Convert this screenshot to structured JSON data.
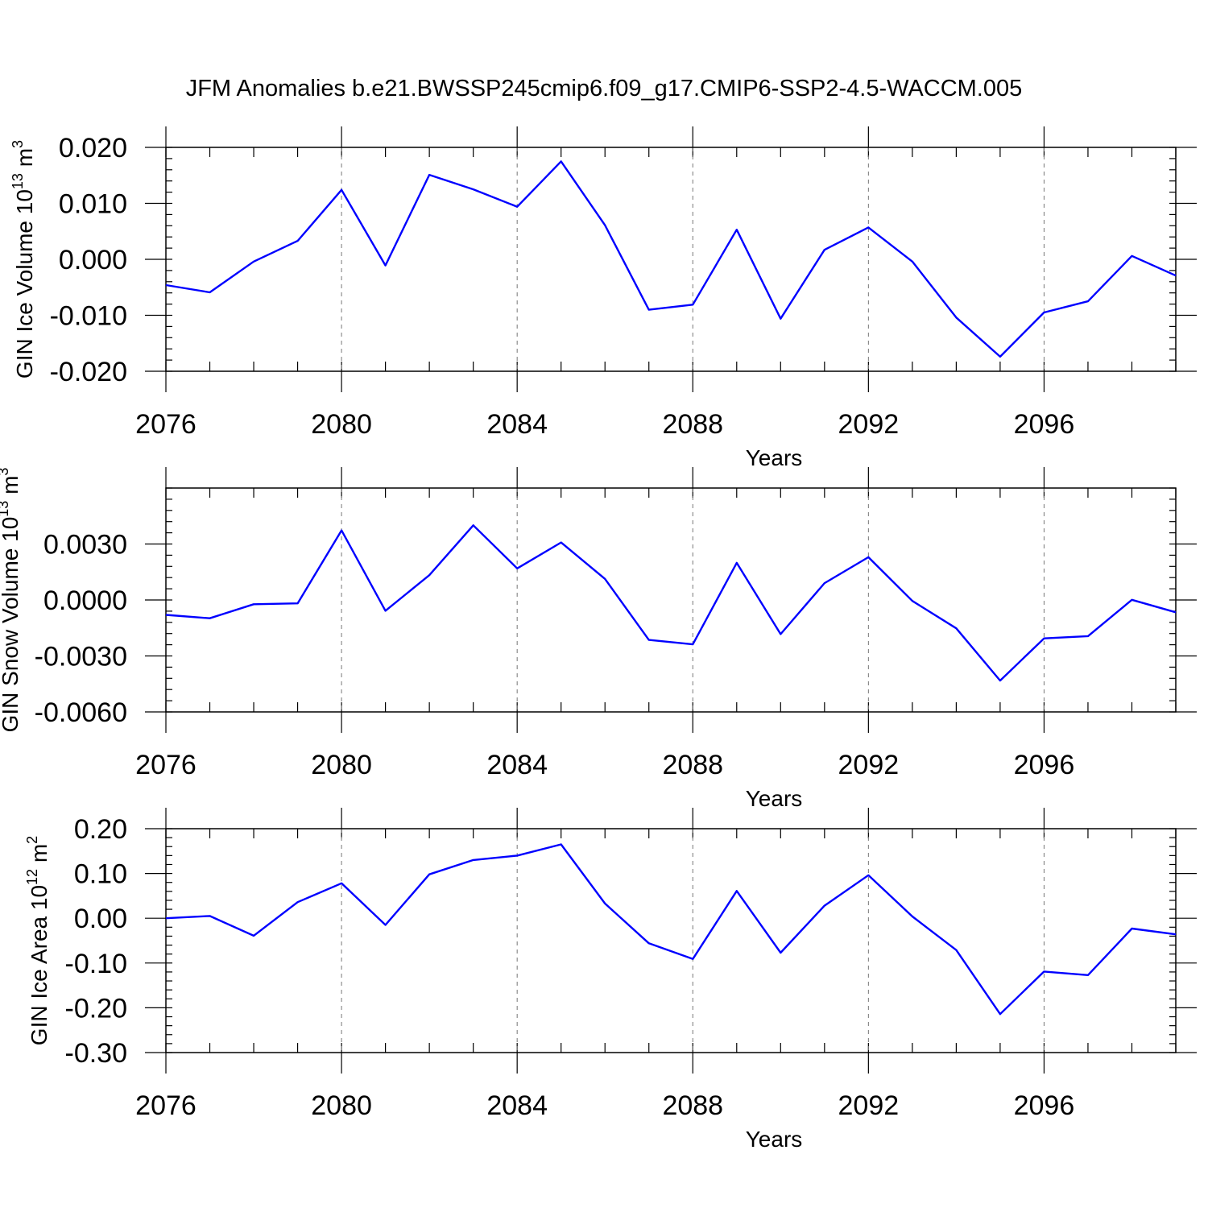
{
  "title": "JFM Anomalies b.e21.BWSSP245cmip6.f09_g17.CMIP6-SSP2-4.5-WACCM.005",
  "chart_data": [
    {
      "type": "line",
      "ylabel": "GIN Ice Volume 10",
      "ylabel_exp": "13",
      "ylabel_unit": " m",
      "ylabel_unit_exp": "3",
      "xlabel": "Years",
      "xlim": [
        2076,
        2099
      ],
      "ylim": [
        -0.02,
        0.02
      ],
      "y_ticks": [
        -0.02,
        -0.01,
        0.0,
        0.01,
        0.02
      ],
      "y_tick_labels": [
        "-0.020",
        "-0.010",
        "0.000",
        "0.010",
        "0.020"
      ],
      "x_ticks": [
        2076,
        2080,
        2084,
        2088,
        2092,
        2096
      ],
      "x_tick_labels": [
        "2076",
        "2080",
        "2084",
        "2088",
        "2092",
        "2096"
      ],
      "x": [
        2076,
        2077,
        2078,
        2079,
        2080,
        2081,
        2082,
        2083,
        2084,
        2085,
        2086,
        2087,
        2088,
        2089,
        2090,
        2091,
        2092,
        2093,
        2094,
        2095,
        2096,
        2097,
        2098,
        2099
      ],
      "values": [
        -0.0046,
        -0.0059,
        -0.0004,
        0.0033,
        0.0124,
        -0.0011,
        0.0151,
        0.0125,
        0.0094,
        0.0175,
        0.0061,
        -0.009,
        -0.0081,
        0.0053,
        -0.0106,
        0.0017,
        0.0057,
        -0.0004,
        -0.0104,
        -0.0174,
        -0.0095,
        -0.0075,
        0.0006,
        -0.0029
      ],
      "color": "#0000ff"
    },
    {
      "type": "line",
      "ylabel": "GIN Snow Volume 10",
      "ylabel_exp": "13",
      "ylabel_unit": " m",
      "ylabel_unit_exp": "3",
      "xlabel": "Years",
      "xlim": [
        2076,
        2099
      ],
      "ylim": [
        -0.006,
        0.006
      ],
      "y_ticks": [
        -0.006,
        -0.003,
        0.0,
        0.003
      ],
      "y_tick_labels": [
        "-0.0060",
        "-0.0030",
        "0.0000",
        "0.0030"
      ],
      "x_ticks": [
        2076,
        2080,
        2084,
        2088,
        2092,
        2096
      ],
      "x_tick_labels": [
        "2076",
        "2080",
        "2084",
        "2088",
        "2092",
        "2096"
      ],
      "x": [
        2076,
        2077,
        2078,
        2079,
        2080,
        2081,
        2082,
        2083,
        2084,
        2085,
        2086,
        2087,
        2088,
        2089,
        2090,
        2091,
        2092,
        2093,
        2094,
        2095,
        2096,
        2097,
        2098,
        2099
      ],
      "values": [
        -0.0008,
        -0.00098,
        -0.00023,
        -0.00018,
        0.00373,
        -0.00058,
        0.00133,
        0.004,
        0.00169,
        0.00308,
        0.00113,
        -0.00214,
        -0.00238,
        0.00199,
        -0.00183,
        0.0009,
        0.00229,
        -5e-05,
        -0.00152,
        -0.00432,
        -0.00206,
        -0.00194,
        1e-05,
        -0.00066
      ],
      "color": "#0000ff"
    },
    {
      "type": "line",
      "ylabel": "GIN Ice Area 10",
      "ylabel_exp": "12",
      "ylabel_unit": " m",
      "ylabel_unit_exp": "2",
      "xlabel": "Years",
      "xlim": [
        2076,
        2099
      ],
      "ylim": [
        -0.3,
        0.2
      ],
      "y_ticks": [
        -0.3,
        -0.2,
        -0.1,
        0.0,
        0.1,
        0.2
      ],
      "y_tick_labels": [
        "-0.30",
        "-0.20",
        "-0.10",
        "0.00",
        "0.10",
        "0.20"
      ],
      "x_ticks": [
        2076,
        2080,
        2084,
        2088,
        2092,
        2096
      ],
      "x_tick_labels": [
        "2076",
        "2080",
        "2084",
        "2088",
        "2092",
        "2096"
      ],
      "x": [
        2076,
        2077,
        2078,
        2079,
        2080,
        2081,
        2082,
        2083,
        2084,
        2085,
        2086,
        2087,
        2088,
        2089,
        2090,
        2091,
        2092,
        2093,
        2094,
        2095,
        2096,
        2097,
        2098,
        2099
      ],
      "values": [
        0.0,
        0.005,
        -0.039,
        0.036,
        0.078,
        -0.015,
        0.098,
        0.13,
        0.14,
        0.165,
        0.033,
        -0.056,
        -0.091,
        0.061,
        -0.077,
        0.028,
        0.096,
        0.004,
        -0.071,
        -0.214,
        -0.119,
        -0.127,
        -0.023,
        -0.036
      ],
      "color": "#0000ff"
    }
  ]
}
